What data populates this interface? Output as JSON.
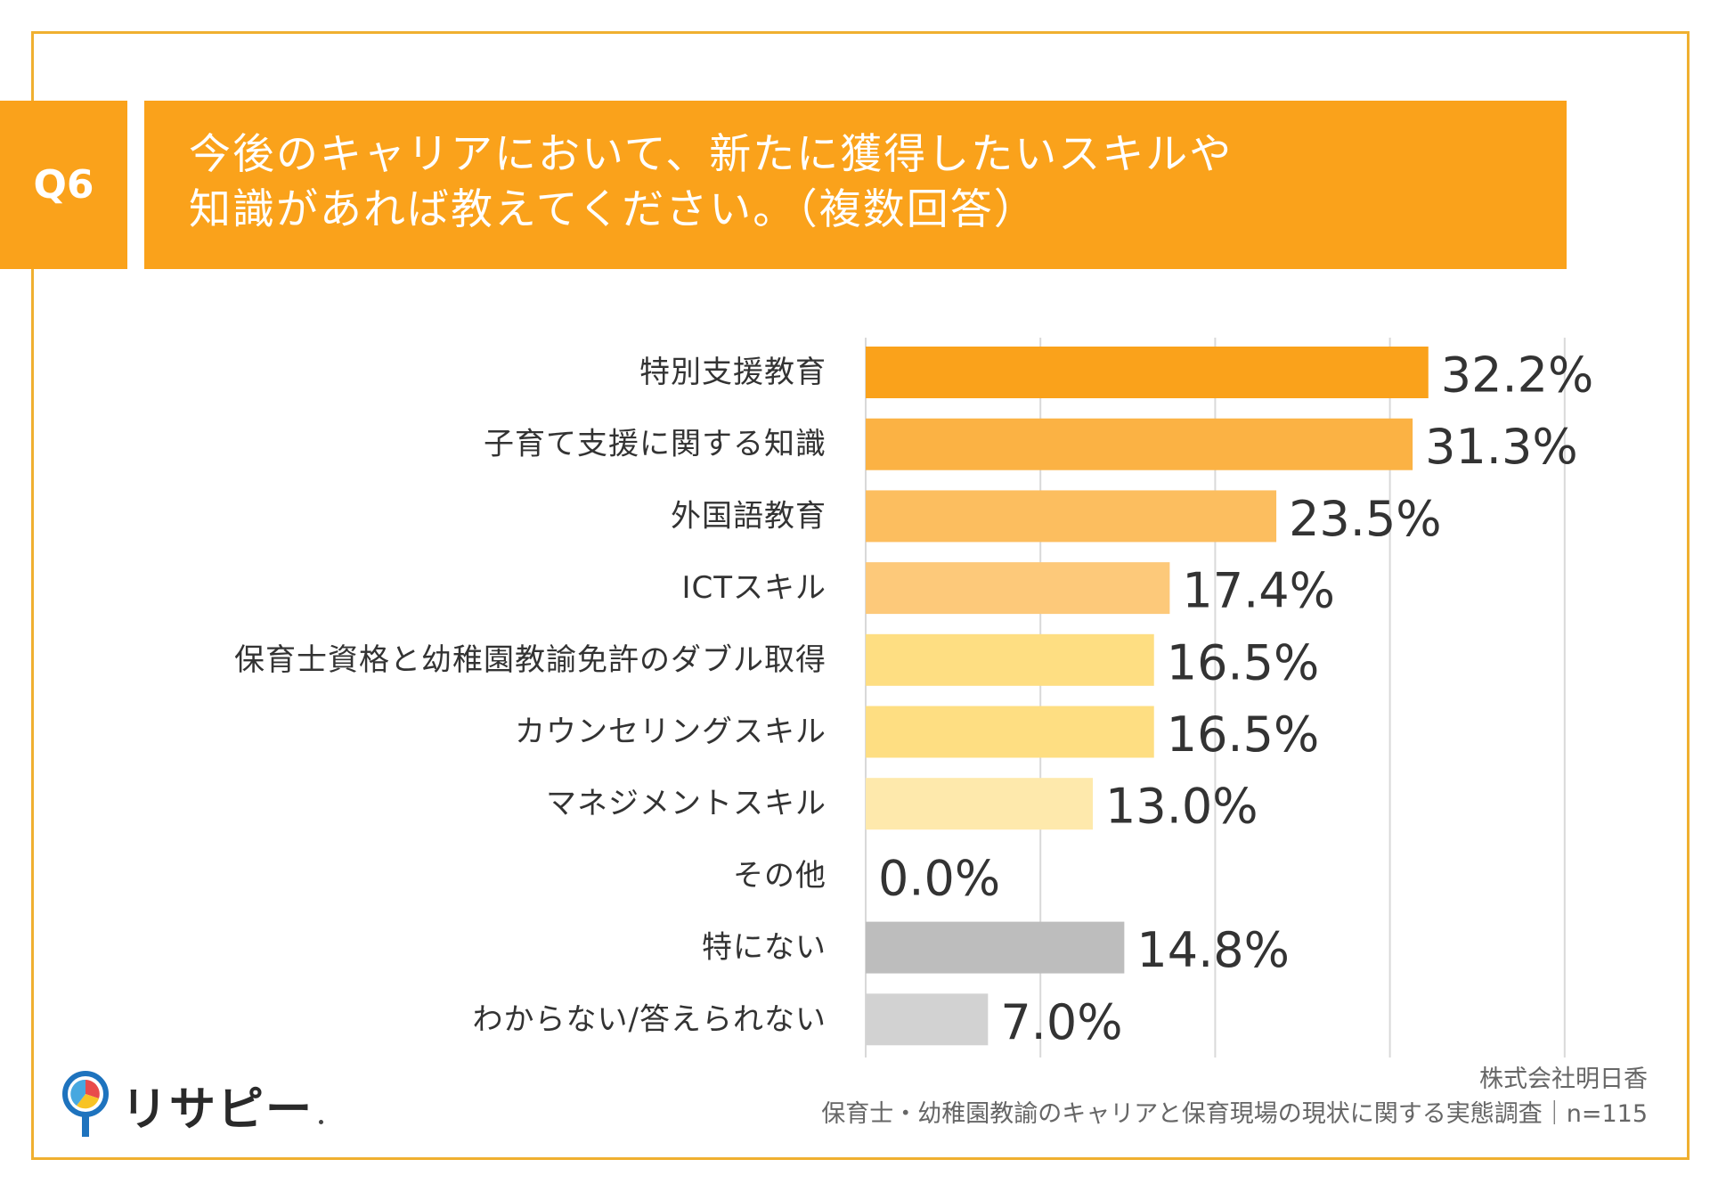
{
  "question": {
    "number": "Q6",
    "line1": "今後のキャリアにおいて、新たに獲得したいスキルや",
    "line2": "知識があれば教えてください。（複数回答）"
  },
  "chart_data": {
    "type": "bar",
    "orientation": "horizontal",
    "title": "今後のキャリアにおいて、新たに獲得したいスキルや知識があれば教えてください。（複数回答）",
    "categories": [
      "特別支援教育",
      "子育て支援に関する知識",
      "外国語教育",
      "ICTスキル",
      "保育士資格と幼稚園教諭免許のダブル取得",
      "カウンセリングスキル",
      "マネジメントスキル",
      "その他",
      "特にない",
      "わからない/答えられない"
    ],
    "values": [
      32.2,
      31.3,
      23.5,
      17.4,
      16.5,
      16.5,
      13.0,
      0.0,
      14.8,
      7.0
    ],
    "value_labels": [
      "32.2%",
      "31.3%",
      "23.5%",
      "17.4%",
      "16.5%",
      "16.5%",
      "13.0%",
      "0.0%",
      "14.8%",
      "7.0%"
    ],
    "colors": [
      "#FAA21B",
      "#FBB244",
      "#FCBE5F",
      "#FDC97A",
      "#FEDE82",
      "#FEDE82",
      "#FEE9AC",
      "#FEE9AC",
      "#BDBDBD",
      "#D2D2D2"
    ],
    "xlim": [
      0,
      40
    ],
    "gridlines_at": [
      0,
      10,
      20,
      30,
      40
    ],
    "grid": true,
    "xlabel": "",
    "ylabel": ""
  },
  "footer": {
    "company": "株式会社明日香",
    "survey": "保育士・幼稚園教諭のキャリアと保育現場の現状に関する実態調査｜n=115"
  },
  "logo": {
    "text": "リサピー"
  },
  "colors": {
    "accent": "#FAA21B",
    "frame": "#F0B030"
  }
}
